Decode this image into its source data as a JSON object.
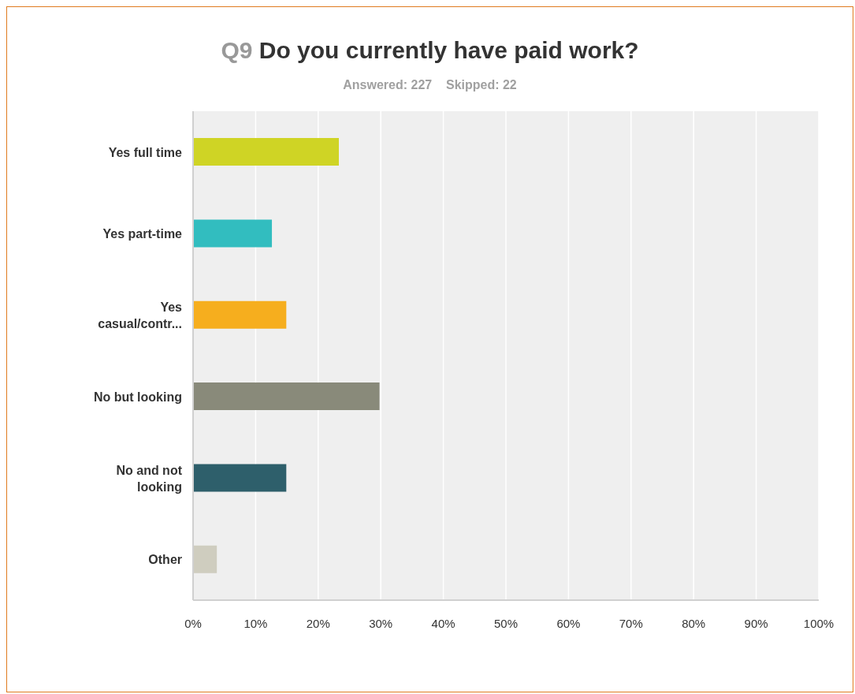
{
  "chart_data": {
    "type": "bar",
    "orientation": "horizontal",
    "title": "Q9 Do you currently have paid work?",
    "subtitle": "Answered: 227    Skipped: 22",
    "categories": [
      "Yes full time",
      "Yes part-time",
      "Yes casual/contr...",
      "No but looking",
      "No and not looking",
      "Other"
    ],
    "values": [
      23.3,
      12.6,
      14.9,
      29.8,
      14.9,
      3.8
    ],
    "colors": [
      "#cfd425",
      "#32bdbf",
      "#f6ae1e",
      "#898a7a",
      "#2e5f6b",
      "#cfcdbf"
    ],
    "xlim": [
      0,
      100
    ],
    "xticks": [
      {
        "value": 0,
        "label": "0%"
      },
      {
        "value": 10,
        "label": "10%"
      },
      {
        "value": 20,
        "label": "20%"
      },
      {
        "value": 30,
        "label": "30%"
      },
      {
        "value": 40,
        "label": "40%"
      },
      {
        "value": 50,
        "label": "50%"
      },
      {
        "value": 60,
        "label": "60%"
      },
      {
        "value": 70,
        "label": "70%"
      },
      {
        "value": 80,
        "label": "80%"
      },
      {
        "value": 90,
        "label": "90%"
      },
      {
        "value": 100,
        "label": "100%"
      }
    ],
    "grid": "x",
    "legend": false
  }
}
